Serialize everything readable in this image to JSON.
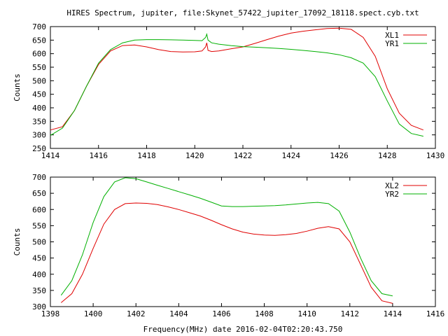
{
  "title": "HIRES Spectrum, jupiter, file:Skynet_57422_jupiter_17092_18118.spect.cyb.txt",
  "xlabel": "Frequency(MHz) date 2016-02-04T02:20:43.750",
  "colors": {
    "series_red": "#e00000",
    "series_green": "#00b000",
    "axis": "#000000"
  },
  "chart_data": [
    {
      "type": "line",
      "ylabel": "Counts",
      "xlim": [
        1414,
        1430
      ],
      "ylim": [
        250,
        700
      ],
      "xticks": [
        1414,
        1416,
        1418,
        1420,
        1422,
        1424,
        1426,
        1428,
        1430
      ],
      "yticks": [
        250,
        300,
        350,
        400,
        450,
        500,
        550,
        600,
        650,
        700
      ],
      "legend": "top-right",
      "grid": false,
      "series": [
        {
          "name": "XL1",
          "color": "#e00000",
          "x": [
            1414.0,
            1414.5,
            1415.0,
            1415.5,
            1416.0,
            1416.5,
            1417.0,
            1417.5,
            1418.0,
            1418.5,
            1419.0,
            1419.5,
            1420.0,
            1420.3,
            1420.45,
            1420.5,
            1420.55,
            1420.7,
            1421.0,
            1421.5,
            1422.0,
            1422.5,
            1423.0,
            1423.5,
            1424.0,
            1424.5,
            1425.0,
            1425.5,
            1426.0,
            1426.5,
            1427.0,
            1427.5,
            1428.0,
            1428.5,
            1429.0,
            1429.5
          ],
          "y": [
            318,
            330,
            390,
            480,
            560,
            610,
            630,
            632,
            625,
            615,
            608,
            606,
            607,
            610,
            625,
            640,
            612,
            608,
            610,
            618,
            625,
            638,
            652,
            665,
            676,
            683,
            688,
            693,
            694,
            690,
            660,
            590,
            470,
            380,
            335,
            318
          ]
        },
        {
          "name": "YR1",
          "color": "#00b000",
          "x": [
            1414.0,
            1414.5,
            1415.0,
            1415.5,
            1416.0,
            1416.5,
            1417.0,
            1417.5,
            1418.0,
            1418.5,
            1419.0,
            1419.5,
            1420.0,
            1420.3,
            1420.45,
            1420.5,
            1420.55,
            1420.7,
            1421.0,
            1421.5,
            1422.0,
            1422.5,
            1423.0,
            1423.5,
            1424.0,
            1424.5,
            1425.0,
            1425.5,
            1426.0,
            1426.5,
            1427.0,
            1427.5,
            1428.0,
            1428.5,
            1429.0,
            1429.5
          ],
          "y": [
            298,
            325,
            390,
            480,
            565,
            615,
            640,
            650,
            652,
            652,
            651,
            650,
            649,
            648,
            660,
            672,
            650,
            640,
            635,
            630,
            626,
            624,
            622,
            619,
            616,
            612,
            608,
            603,
            596,
            585,
            565,
            515,
            425,
            340,
            305,
            295
          ]
        }
      ]
    },
    {
      "type": "line",
      "ylabel": "Counts",
      "xlim": [
        1398,
        1416
      ],
      "ylim": [
        300,
        700
      ],
      "xticks": [
        1398,
        1400,
        1402,
        1404,
        1406,
        1408,
        1410,
        1412,
        1414,
        1416
      ],
      "yticks": [
        300,
        350,
        400,
        450,
        500,
        550,
        600,
        650,
        700
      ],
      "legend": "top-right",
      "grid": false,
      "series": [
        {
          "name": "XL2",
          "color": "#e00000",
          "x": [
            1398.5,
            1399.0,
            1399.5,
            1400.0,
            1400.5,
            1401.0,
            1401.5,
            1402.0,
            1402.5,
            1403.0,
            1403.5,
            1404.0,
            1404.5,
            1405.0,
            1405.5,
            1406.0,
            1406.5,
            1407.0,
            1407.5,
            1408.0,
            1408.5,
            1409.0,
            1409.5,
            1410.0,
            1410.5,
            1411.0,
            1411.5,
            1412.0,
            1412.5,
            1413.0,
            1413.5,
            1414.0
          ],
          "y": [
            312,
            340,
            400,
            480,
            555,
            600,
            618,
            620,
            619,
            615,
            608,
            600,
            590,
            580,
            567,
            553,
            540,
            530,
            524,
            521,
            520,
            522,
            526,
            533,
            542,
            547,
            540,
            500,
            430,
            360,
            318,
            310
          ]
        },
        {
          "name": "YR2",
          "color": "#00b000",
          "x": [
            1398.5,
            1399.0,
            1399.5,
            1400.0,
            1400.5,
            1401.0,
            1401.5,
            1402.0,
            1402.5,
            1403.0,
            1403.5,
            1404.0,
            1404.5,
            1405.0,
            1405.5,
            1406.0,
            1406.5,
            1407.0,
            1407.5,
            1408.0,
            1408.5,
            1409.0,
            1409.5,
            1410.0,
            1410.5,
            1411.0,
            1411.5,
            1412.0,
            1412.5,
            1413.0,
            1413.5,
            1414.0
          ],
          "y": [
            335,
            380,
            460,
            560,
            640,
            685,
            698,
            695,
            685,
            675,
            665,
            655,
            645,
            635,
            623,
            611,
            609,
            609,
            610,
            611,
            612,
            614,
            617,
            620,
            622,
            618,
            595,
            530,
            450,
            380,
            340,
            333
          ]
        }
      ]
    }
  ]
}
